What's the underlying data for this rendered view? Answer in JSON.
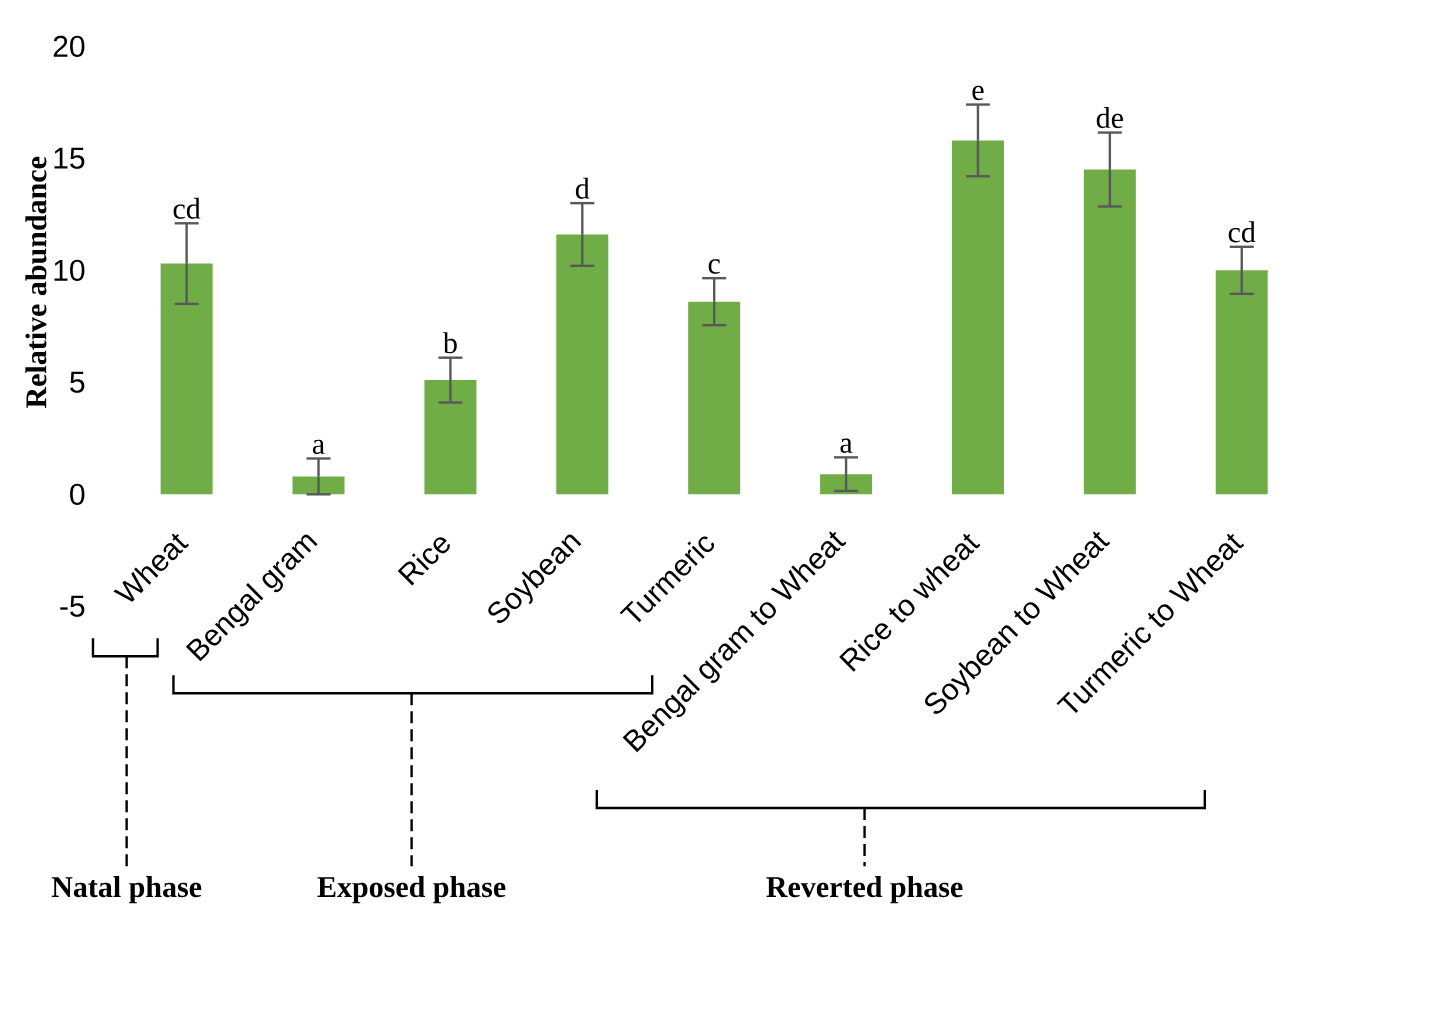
{
  "chart_data": {
    "type": "bar",
    "ylabel": "Relative abundance",
    "categories": [
      "Wheat",
      "Bengal gram",
      "Rice",
      "Soybean",
      "Turmeric",
      "Bengal gram to Wheat",
      "Rice to wheat",
      "Soybean to Wheat",
      "Turmeric to Wheat"
    ],
    "values": [
      10.3,
      0.8,
      5.1,
      11.6,
      8.6,
      0.9,
      15.8,
      14.5,
      10.0
    ],
    "errors": [
      1.8,
      0.8,
      1.0,
      1.4,
      1.05,
      0.75,
      1.6,
      1.65,
      1.05
    ],
    "color": "#70ad47",
    "ylim": [
      -5,
      20
    ],
    "yticks": [
      -5,
      0,
      5,
      10,
      15,
      20
    ],
    "grid": false,
    "annotations": [
      "cd",
      "a",
      "b",
      "d",
      "c",
      "a",
      "e",
      "de",
      "cd",
      "Natal phase",
      "Exposed phase",
      "Reverted phase"
    ]
  }
}
